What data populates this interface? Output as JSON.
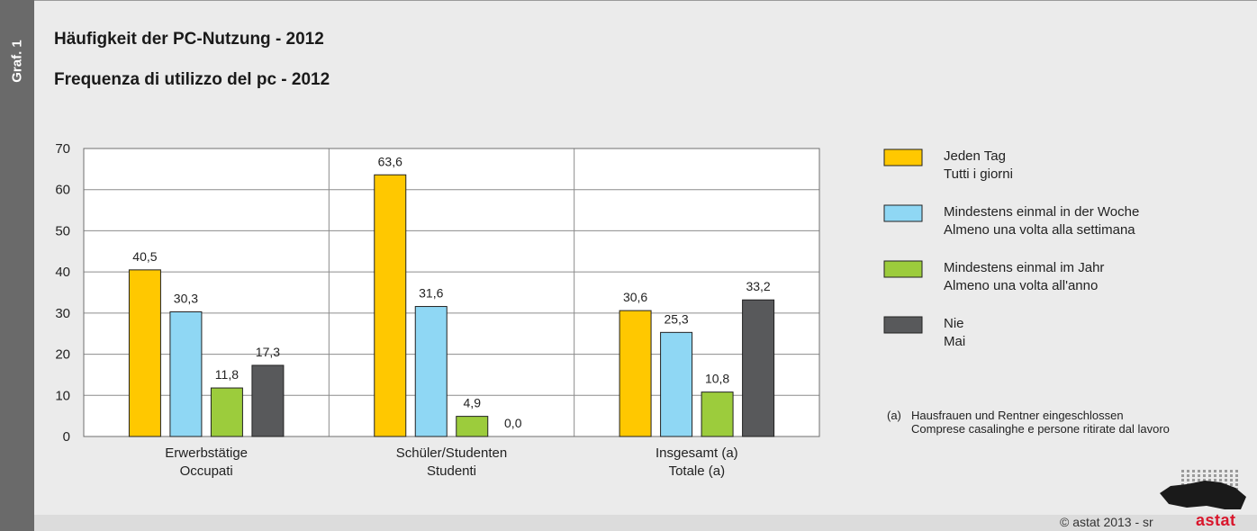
{
  "side_label": "Graf. 1",
  "title_de": "Häufigkeit der PC-Nutzung - 2012",
  "title_it": "Frequenza di utilizzo del pc - 2012",
  "footnote": {
    "marker": "(a)",
    "line1": "Hausfrauen und Rentner eingeschlossen",
    "line2": "Comprese casalinghe e persone ritirate dal lavoro"
  },
  "copyright": "©  astat 2013 - sr",
  "logo_text": "astat",
  "colors": {
    "jeden_tag": "#ffc800",
    "woche": "#8fd7f4",
    "jahr": "#9ccc3c",
    "nie": "#58595b"
  },
  "chart_data": {
    "type": "bar",
    "categories": [
      [
        "Erwerbstätige",
        "Occupati"
      ],
      [
        "Schüler/Studenten",
        "Studenti"
      ],
      [
        "Insgesamt (a)",
        "Totale (a)"
      ]
    ],
    "series": [
      {
        "name": [
          "Jeden Tag",
          "Tutti i giorni"
        ],
        "color": "#ffc800",
        "values": [
          40.5,
          63.6,
          30.6
        ],
        "labels": [
          "40,5",
          "63,6",
          "30,6"
        ]
      },
      {
        "name": [
          "Mindestens einmal in der Woche",
          "Almeno una volta alla settimana"
        ],
        "color": "#8fd7f4",
        "values": [
          30.3,
          31.6,
          25.3
        ],
        "labels": [
          "30,3",
          "31,6",
          "25,3"
        ]
      },
      {
        "name": [
          "Mindestens einmal im Jahr",
          "Almeno una volta all'anno"
        ],
        "color": "#9ccc3c",
        "values": [
          11.8,
          4.9,
          10.8
        ],
        "labels": [
          "11,8",
          "4,9",
          "10,8"
        ]
      },
      {
        "name": [
          "Nie",
          "Mai"
        ],
        "color": "#58595b",
        "values": [
          17.3,
          0.0,
          33.2
        ],
        "labels": [
          "17,3",
          "0,0",
          "33,2"
        ]
      }
    ],
    "ylim": [
      0,
      70
    ],
    "yticks": [
      0,
      10,
      20,
      30,
      40,
      50,
      60,
      70
    ],
    "grid": true,
    "legend_position": "right"
  }
}
